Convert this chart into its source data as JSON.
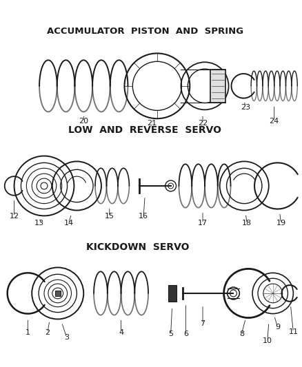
{
  "background_color": "#ffffff",
  "line_color": "#1a1a1a",
  "text_color": "#1a1a1a",
  "kickdown_label": "KICKDOWN  SERVO",
  "low_rev_label": "LOW  AND  REVERSE  SERVO",
  "accum_label": "ACCUMULATOR  PISTON  AND  SPRING",
  "fig_w": 4.38,
  "fig_h": 5.33,
  "dpi": 100
}
